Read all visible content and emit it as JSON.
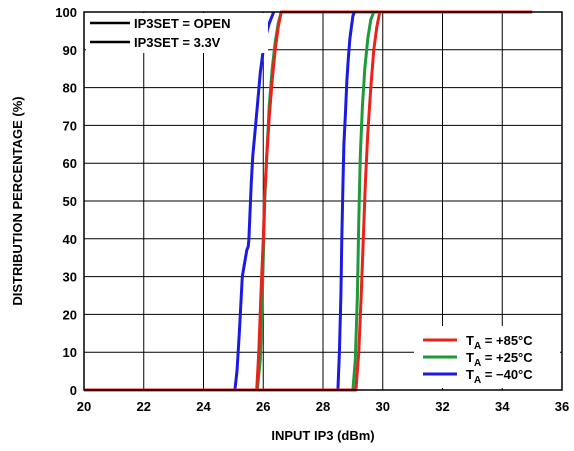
{
  "chart_data": {
    "type": "line",
    "xlabel": "INPUT IP3 (dBm)",
    "ylabel": "DISTRIBUTION PERCENTAGE (%)",
    "xlim": [
      20,
      36
    ],
    "ylim": [
      0,
      100
    ],
    "xticks": [
      20,
      22,
      24,
      26,
      28,
      30,
      32,
      34,
      36
    ],
    "yticks": [
      0,
      10,
      20,
      30,
      40,
      50,
      60,
      70,
      80,
      90,
      100
    ],
    "grid": true,
    "style_legend": {
      "placement": "top-left",
      "entries": [
        {
          "label": "IP3SET = OPEN"
        },
        {
          "label": "IP3SET = 3.3V"
        }
      ]
    },
    "temp_legend": {
      "placement": "bottom-right",
      "entries": [
        {
          "prefix": "T",
          "sub": "A",
          "suffix": " = +85°C",
          "color": "#e8231b"
        },
        {
          "prefix": "T",
          "sub": "A",
          "suffix": " = +25°C",
          "color": "#1f9a3a"
        },
        {
          "prefix": "T",
          "sub": "A",
          "suffix": " = −40°C",
          "color": "#1a1ae0"
        }
      ]
    },
    "series": [
      {
        "group": "IP3SET = OPEN",
        "color": "#1a1ae0",
        "x": [
          20,
          25.05,
          25.12,
          25.2,
          25.3,
          25.45,
          25.5,
          25.52,
          25.6,
          25.65,
          25.72,
          25.8,
          25.9,
          26.0,
          26.1,
          26.2,
          26.3,
          26.35
        ],
        "y": [
          0,
          0,
          5,
          15,
          30,
          37,
          38,
          40,
          55,
          62,
          68,
          75,
          84,
          90,
          94,
          97,
          99,
          100
        ]
      },
      {
        "group": "IP3SET = OPEN",
        "color": "#1f9a3a",
        "x": [
          20,
          25.8,
          25.9,
          25.95,
          26.0,
          26.05,
          26.12,
          26.2,
          26.3,
          26.4,
          26.5,
          26.6
        ],
        "y": [
          0,
          0,
          8,
          20,
          35,
          50,
          62,
          75,
          85,
          92,
          97,
          100
        ]
      },
      {
        "group": "IP3SET = OPEN",
        "color": "#e8231b",
        "x": [
          20,
          25.78,
          25.85,
          25.92,
          26.0,
          26.05,
          26.12,
          26.2,
          26.3,
          26.4,
          26.5,
          26.6,
          35
        ],
        "y": [
          0,
          0,
          10,
          25,
          40,
          52,
          62,
          72,
          82,
          90,
          96,
          100,
          100
        ]
      },
      {
        "group": "IP3SET = 3.3V",
        "color": "#1a1ae0",
        "x": [
          20,
          28.5,
          28.55,
          28.6,
          28.63,
          28.67,
          28.7,
          28.75,
          28.8,
          28.85,
          28.9,
          28.95,
          29.0,
          29.05
        ],
        "y": [
          0,
          0,
          10,
          25,
          40,
          55,
          65,
          73,
          82,
          88,
          93,
          96,
          99,
          100
        ]
      },
      {
        "group": "IP3SET = 3.3V",
        "color": "#1f9a3a",
        "x": [
          20,
          29.0,
          29.08,
          29.15,
          29.2,
          29.25,
          29.32,
          29.4,
          29.5,
          29.6,
          29.7
        ],
        "y": [
          0,
          0,
          8,
          25,
          45,
          62,
          75,
          85,
          93,
          98,
          100
        ]
      },
      {
        "group": "IP3SET = 3.3V",
        "color": "#e8231b",
        "x": [
          20,
          29.1,
          29.2,
          29.28,
          29.35,
          29.42,
          29.5,
          29.6,
          29.7,
          29.8,
          29.9,
          35
        ],
        "y": [
          0,
          0,
          10,
          25,
          40,
          55,
          68,
          80,
          90,
          96,
          100,
          100
        ]
      }
    ]
  }
}
